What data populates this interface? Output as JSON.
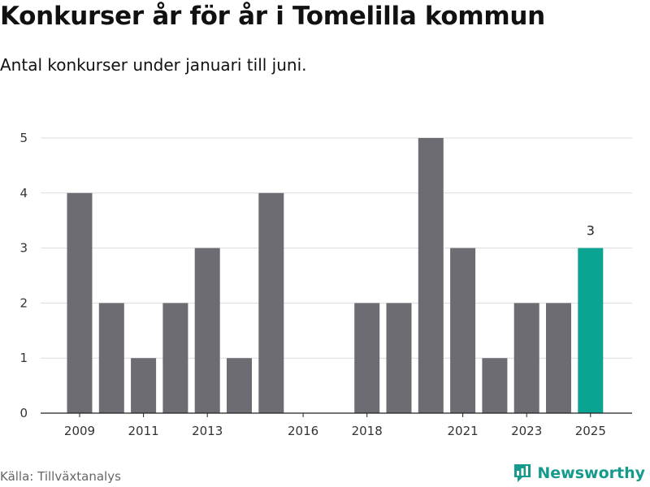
{
  "header": {
    "title": "Konkurser år för år i Tomelilla kommun",
    "subtitle": "Antal konkurser under januari till juni."
  },
  "footer": {
    "source": "Källa: Tillväxtanalys",
    "brand": "Newsworthy",
    "brand_icon": "newsworthy-logo-icon"
  },
  "colors": {
    "bar": "#6d6c72",
    "highlight": "#0ba391",
    "brand": "#159b8e"
  },
  "chart_data": {
    "type": "bar",
    "title": "Konkurser år för år i Tomelilla kommun",
    "subtitle": "Antal konkurser under januari till juni.",
    "categories": [
      "2009",
      "2010",
      "2011",
      "2012",
      "2013",
      "2014",
      "2015",
      "2016",
      "2017",
      "2018",
      "2019",
      "2020",
      "2021",
      "2022",
      "2023",
      "2024",
      "2025"
    ],
    "values": [
      4,
      2,
      1,
      2,
      3,
      1,
      4,
      0,
      0,
      2,
      2,
      5,
      3,
      1,
      2,
      2,
      3
    ],
    "x_tick_labels": [
      "2009",
      "2011",
      "2013",
      "2016",
      "2018",
      "2021",
      "2023",
      "2025"
    ],
    "y_ticks": [
      0,
      1,
      2,
      3,
      4,
      5
    ],
    "ylim": [
      0,
      5
    ],
    "highlight": {
      "category": "2025",
      "label": "3"
    },
    "xlabel": "",
    "ylabel": "",
    "grid": true,
    "legend": "none"
  }
}
